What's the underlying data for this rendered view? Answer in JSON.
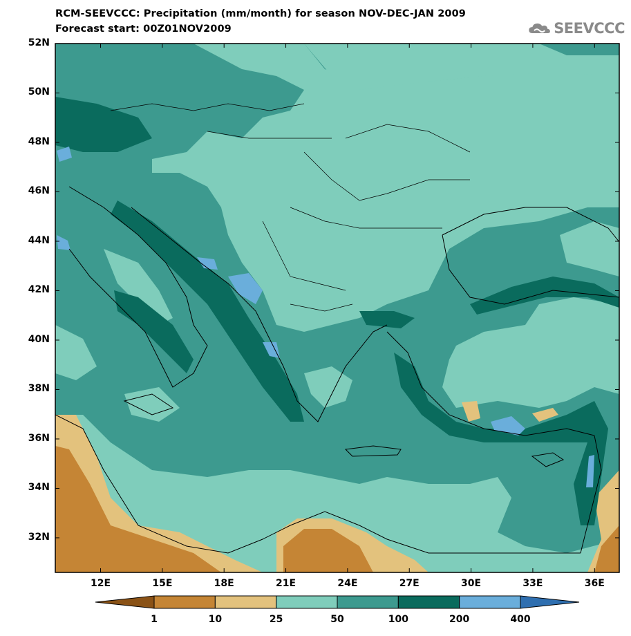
{
  "title": "RCM-SEEVCCC: Precipitation (mm/month) for season NOV-DEC-JAN 2009",
  "subtitle": "Forecast start: 00Z01NOV2009",
  "logo": {
    "text": "SEEVCCC",
    "icon": "cloud-logo-icon"
  },
  "map": {
    "lat_labels": [
      "52N",
      "50N",
      "48N",
      "46N",
      "44N",
      "42N",
      "40N",
      "38N",
      "36N",
      "34N",
      "32N"
    ],
    "lon_labels": [
      "12E",
      "15E",
      "18E",
      "21E",
      "24E",
      "27E",
      "30E",
      "33E",
      "36E"
    ],
    "lat_range": [
      30.6,
      52
    ],
    "lon_range": [
      9.8,
      37.2
    ]
  },
  "colorbar": {
    "thresholds": [
      "1",
      "10",
      "25",
      "50",
      "100",
      "200",
      "400"
    ],
    "colors": [
      "#8a5216",
      "#c58535",
      "#e3c27d",
      "#7fcdbb",
      "#3d9a8f",
      "#0a6b5d",
      "#6aaedb",
      "#2f6fb0"
    ]
  }
}
